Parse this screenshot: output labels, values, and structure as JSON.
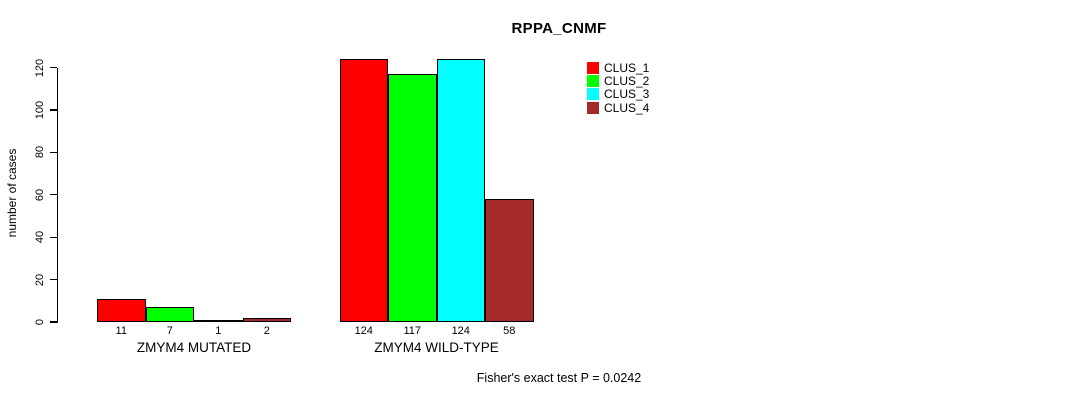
{
  "title": "RPPA_CNMF",
  "footer": "Fisher's exact test P = 0.0242",
  "chart_data": {
    "type": "bar",
    "title": "RPPA_CNMF",
    "xlabel": "",
    "ylabel": "number of cases",
    "ylim": [
      0,
      124
    ],
    "yticks": [
      0,
      20,
      40,
      60,
      80,
      100,
      120
    ],
    "grid": false,
    "legend_position": "top-right",
    "bar_value_labels": true,
    "categories": [
      "ZMYM4 MUTATED",
      "ZMYM4 WILD-TYPE"
    ],
    "series": [
      {
        "name": "CLUS_1",
        "color": "#FF0000",
        "values": [
          11,
          124
        ]
      },
      {
        "name": "CLUS_2",
        "color": "#00FF00",
        "values": [
          7,
          117
        ]
      },
      {
        "name": "CLUS_3",
        "color": "#00FFFF",
        "values": [
          1,
          124
        ]
      },
      {
        "name": "CLUS_4",
        "color": "#A52A2A",
        "values": [
          2,
          58
        ]
      }
    ],
    "annotation": "Fisher's exact test P = 0.0242"
  }
}
